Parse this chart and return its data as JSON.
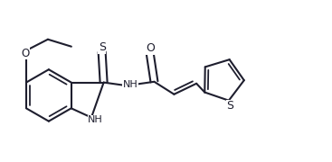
{
  "background": "#ffffff",
  "line_color": "#1e1e2e",
  "line_width": 1.5,
  "font_size": 8.0,
  "figsize": [
    3.67,
    1.8
  ],
  "dpi": 100,
  "xlim": [
    0,
    9.2
  ],
  "ylim": [
    0,
    4.5
  ]
}
